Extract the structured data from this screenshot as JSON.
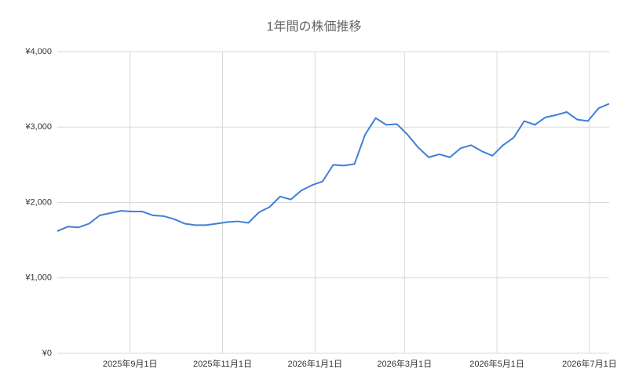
{
  "chart_data": {
    "type": "line",
    "title": "1年間の株価推移",
    "x": [
      "2025-07-15",
      "2025-07-22",
      "2025-07-29",
      "2025-08-05",
      "2025-08-12",
      "2025-08-19",
      "2025-08-26",
      "2025-09-02",
      "2025-09-09",
      "2025-09-16",
      "2025-09-23",
      "2025-09-30",
      "2025-10-07",
      "2025-10-14",
      "2025-10-21",
      "2025-10-28",
      "2025-11-04",
      "2025-11-11",
      "2025-11-18",
      "2025-11-25",
      "2025-12-02",
      "2025-12-09",
      "2025-12-16",
      "2025-12-23",
      "2025-12-30",
      "2026-01-06",
      "2026-01-13",
      "2026-01-20",
      "2026-01-27",
      "2026-02-03",
      "2026-02-10",
      "2026-02-17",
      "2026-02-24",
      "2026-03-03",
      "2026-03-10",
      "2026-03-17",
      "2026-03-24",
      "2026-03-31",
      "2026-04-07",
      "2026-04-14",
      "2026-04-21",
      "2026-04-28",
      "2026-05-05",
      "2026-05-12",
      "2026-05-19",
      "2026-05-26",
      "2026-06-02",
      "2026-06-09",
      "2026-06-16",
      "2026-06-23",
      "2026-06-30",
      "2026-07-07",
      "2026-07-14"
    ],
    "series": [
      {
        "color": "#3f7fd6",
        "values": [
          1620,
          1680,
          1670,
          1720,
          1830,
          1860,
          1890,
          1880,
          1880,
          1830,
          1820,
          1780,
          1720,
          1700,
          1700,
          1720,
          1740,
          1750,
          1730,
          1870,
          1940,
          2080,
          2040,
          2160,
          2230,
          2280,
          2500,
          2490,
          2510,
          2900,
          3120,
          3030,
          3040,
          2900,
          2730,
          2600,
          2640,
          2600,
          2720,
          2760,
          2680,
          2620,
          2760,
          2860,
          3080,
          3030,
          3130,
          3160,
          3200,
          3100,
          3080,
          3250,
          3310
        ]
      }
    ],
    "xlim": [
      "2025-07-15",
      "2026-07-14"
    ],
    "xticks": [
      {
        "value": "2025-09-01",
        "label": "2025年9月1日"
      },
      {
        "value": "2025-11-01",
        "label": "2025年11月1日"
      },
      {
        "value": "2026-01-01",
        "label": "2026年1月1日"
      },
      {
        "value": "2026-03-01",
        "label": "2026年3月1日"
      },
      {
        "value": "2026-05-01",
        "label": "2026年5月1日"
      },
      {
        "value": "2026-07-01",
        "label": "2026年7月1日"
      }
    ],
    "ylim": [
      0,
      4000
    ],
    "yticks": [
      {
        "value": 0,
        "label": "¥0"
      },
      {
        "value": 1000,
        "label": "¥1,000"
      },
      {
        "value": 2000,
        "label": "¥2,000"
      },
      {
        "value": 3000,
        "label": "¥3,000"
      },
      {
        "value": 4000,
        "label": "¥4,000"
      }
    ],
    "grid": true
  }
}
